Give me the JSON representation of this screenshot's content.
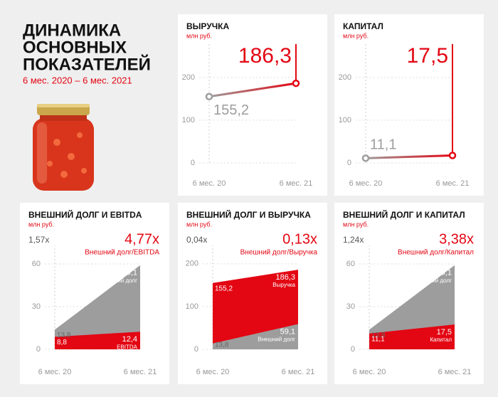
{
  "header": {
    "title_lines": [
      "ДИНАМИКА",
      "ОСНОВНЫХ",
      "ПОКАЗАТЕЛЕЙ"
    ],
    "subtitle": "6 мес. 2020 – 6 мес. 2021"
  },
  "chart_data": [
    {
      "type": "line",
      "title": "ВЫРУЧКА",
      "subtitle": "млн руб.",
      "categories": [
        "6 мес. 20",
        "6 мес. 21"
      ],
      "values": [
        155.2,
        186.3
      ],
      "value_labels": [
        "155,2",
        "186,3"
      ],
      "colors": [
        "#9d9d9d",
        "#e30613"
      ],
      "ylim": [
        0,
        278
      ],
      "yticks": [
        0,
        100,
        200
      ]
    },
    {
      "type": "line",
      "title": "КАПИТАЛ",
      "subtitle": "млн руб.",
      "categories": [
        "6 мес. 20",
        "6 мес. 21"
      ],
      "values": [
        11.1,
        17.5
      ],
      "value_labels": [
        "11,1",
        "17,5"
      ],
      "colors": [
        "#9d9d9d",
        "#e30613"
      ],
      "ylim": [
        0,
        278
      ],
      "yticks": [
        0,
        100,
        200
      ]
    },
    {
      "type": "area",
      "title": "ВНЕШНИЙ ДОЛГ И EBITDA",
      "subtitle": "млн руб.",
      "categories": [
        "6 мес. 20",
        "6 мес. 21"
      ],
      "ratio_start": "1,57x",
      "ratio_end": "4,77x",
      "ratio_name": "Внешний долг/EBITDA",
      "series": [
        {
          "name": "Внешний долг",
          "color": "#9d9d9d",
          "values": [
            13.8,
            59.1
          ],
          "value_labels": [
            "13,8",
            "59,1"
          ]
        },
        {
          "name": "EBITDA",
          "color": "#e30613",
          "values": [
            8.8,
            12.4
          ],
          "value_labels": [
            "8,8",
            "12,4"
          ]
        }
      ],
      "ylim": [
        0,
        73
      ],
      "yticks": [
        0,
        30,
        60
      ]
    },
    {
      "type": "area",
      "title": "ВНЕШНИЙ ДОЛГ И ВЫРУЧКА",
      "subtitle": "млн руб.",
      "categories": [
        "6 мес. 20",
        "6 мес. 21"
      ],
      "ratio_start": "0,04x",
      "ratio_end": "0,13x",
      "ratio_name": "Внешний долг/Выручка",
      "series": [
        {
          "name": "Выручка",
          "color": "#e30613",
          "values": [
            155.2,
            186.3
          ],
          "value_labels": [
            "155,2",
            "186,3"
          ]
        },
        {
          "name": "Внешний долг",
          "color": "#9d9d9d",
          "values": [
            13.8,
            59.1
          ],
          "value_labels": [
            "13,8",
            "59,1"
          ]
        }
      ],
      "ylim": [
        0,
        243
      ],
      "yticks": [
        0,
        100,
        200
      ]
    },
    {
      "type": "area",
      "title": "ВНЕШНИЙ ДОЛГ И КАПИТАЛ",
      "subtitle": "млн руб.",
      "categories": [
        "6 мес. 20",
        "6 мес. 21"
      ],
      "ratio_start": "1,24x",
      "ratio_end": "3,38x",
      "ratio_name": "Внешний долг/Капитал",
      "series": [
        {
          "name": "Внешний долг",
          "color": "#9d9d9d",
          "values": [
            13.8,
            59.1
          ],
          "value_labels": [
            "13,8",
            "59,1"
          ]
        },
        {
          "name": "Капитал",
          "color": "#e30613",
          "values": [
            11.1,
            17.5
          ],
          "value_labels": [
            "11,1",
            "17,5"
          ]
        }
      ],
      "ylim": [
        0,
        73
      ],
      "yticks": [
        0,
        30,
        60
      ]
    }
  ]
}
